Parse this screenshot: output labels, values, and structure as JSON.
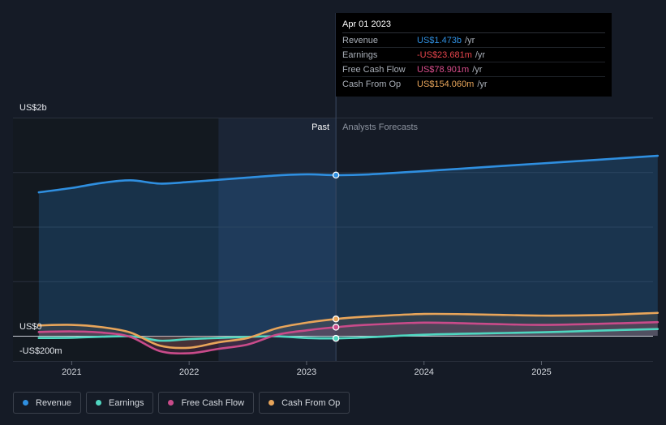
{
  "tooltip": {
    "date": "Apr 01 2023",
    "rows": [
      {
        "name": "Revenue",
        "value": "US$1.473b",
        "unit": "/yr",
        "color": "#2f8fe0"
      },
      {
        "name": "Earnings",
        "value": "-US$23.681m",
        "unit": "/yr",
        "color": "#e8454d"
      },
      {
        "name": "Free Cash Flow",
        "value": "US$78.901m",
        "unit": "/yr",
        "color": "#d94d8c"
      },
      {
        "name": "Cash From Op",
        "value": "US$154.060m",
        "unit": "/yr",
        "color": "#e8a55a"
      }
    ]
  },
  "legend": [
    {
      "name": "Revenue",
      "color": "#2f8fe0"
    },
    {
      "name": "Earnings",
      "color": "#4fd6c0"
    },
    {
      "name": "Free Cash Flow",
      "color": "#c94b8a"
    },
    {
      "name": "Cash From Op",
      "color": "#e8a55a"
    }
  ],
  "chart_data": {
    "type": "line",
    "title": "",
    "xlabel": "",
    "ylabel": "",
    "y_axis_labels": [
      "US$2b",
      "US$0",
      "-US$200m"
    ],
    "x_tick_labels": [
      "2021",
      "2022",
      "2023",
      "2024",
      "2025"
    ],
    "x_ticks": [
      2021.0,
      2022.0,
      2023.0,
      2024.0,
      2025.0
    ],
    "xlim": [
      2020.5,
      2026.0
    ],
    "ylim": [
      -200,
      2000
    ],
    "unit": "US$m",
    "past_label": "Past",
    "forecast_label": "Analysts Forecasts",
    "past_end": 2023.25,
    "shaded_band_start": 2022.25,
    "series": [
      {
        "name": "Revenue",
        "color": "#2f8fe0",
        "x": [
          2020.72,
          2021.0,
          2021.25,
          2021.5,
          2021.75,
          2022.0,
          2022.25,
          2022.5,
          2022.75,
          2023.0,
          2023.25,
          2023.5,
          2024.0,
          2024.5,
          2025.0,
          2025.5,
          2025.99
        ],
        "values": [
          1315,
          1355,
          1400,
          1425,
          1395,
          1410,
          1430,
          1450,
          1470,
          1480,
          1473,
          1478,
          1510,
          1545,
          1580,
          1615,
          1650
        ]
      },
      {
        "name": "Earnings",
        "color": "#4fd6c0",
        "x": [
          2020.72,
          2021.0,
          2021.5,
          2021.75,
          2022.0,
          2022.25,
          2022.5,
          2022.75,
          2023.0,
          2023.25,
          2023.5,
          2024.0,
          2024.5,
          2025.0,
          2025.5,
          2025.99
        ],
        "values": [
          -20,
          -18,
          -5,
          -45,
          -30,
          -20,
          -10,
          -5,
          -20,
          -23.681,
          -15,
          10,
          22,
          32,
          48,
          62
        ]
      },
      {
        "name": "Free Cash Flow",
        "color": "#c94b8a",
        "x": [
          2020.72,
          2021.0,
          2021.25,
          2021.5,
          2021.75,
          2022.0,
          2022.25,
          2022.5,
          2022.75,
          2023.0,
          2023.25,
          2023.5,
          2024.0,
          2024.5,
          2025.0,
          2025.5,
          2025.99
        ],
        "values": [
          35,
          40,
          30,
          -10,
          -140,
          -160,
          -120,
          -80,
          10,
          50,
          78.901,
          100,
          120,
          110,
          100,
          110,
          125
        ]
      },
      {
        "name": "Cash From Op",
        "color": "#e8a55a",
        "x": [
          2020.72,
          2021.0,
          2021.25,
          2021.5,
          2021.75,
          2022.0,
          2022.25,
          2022.5,
          2022.75,
          2023.0,
          2023.25,
          2023.5,
          2024.0,
          2024.5,
          2025.0,
          2025.5,
          2025.99
        ],
        "values": [
          95,
          100,
          80,
          30,
          -90,
          -110,
          -60,
          -20,
          70,
          120,
          154.06,
          175,
          200,
          195,
          185,
          190,
          210
        ]
      }
    ]
  }
}
